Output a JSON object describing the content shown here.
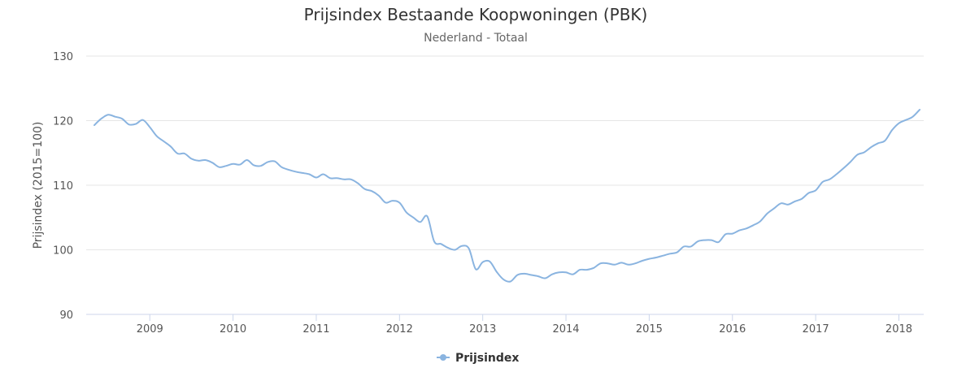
{
  "chart_data": {
    "type": "line",
    "title": "Prijsindex Bestaande Koopwoningen (PBK)",
    "subtitle": "Nederland - Totaal",
    "ylabel": "Prijsindex (2015=100)",
    "xlabel": "",
    "ylim": [
      90,
      130
    ],
    "yticks": [
      "90",
      "100",
      "110",
      "120",
      "130"
    ],
    "xticks": [
      "2009",
      "2010",
      "2011",
      "2012",
      "2013",
      "2014",
      "2015",
      "2016",
      "2017",
      "2018"
    ],
    "xlim": [
      "2008-05",
      "2018-05"
    ],
    "grid": true,
    "legend_position": "bottom-center",
    "series": [
      {
        "name": "Prijsindex",
        "color": "#8ab4e0",
        "points": [
          [
            "2008-05",
            119.3
          ],
          [
            "2008-06",
            120.3
          ],
          [
            "2008-07",
            120.9
          ],
          [
            "2008-08",
            120.6
          ],
          [
            "2008-09",
            120.3
          ],
          [
            "2008-10",
            119.4
          ],
          [
            "2008-11",
            119.5
          ],
          [
            "2008-12",
            120.1
          ],
          [
            "2009-01",
            119.0
          ],
          [
            "2009-02",
            117.6
          ],
          [
            "2009-03",
            116.8
          ],
          [
            "2009-04",
            116.0
          ],
          [
            "2009-05",
            114.9
          ],
          [
            "2009-06",
            114.9
          ],
          [
            "2009-07",
            114.1
          ],
          [
            "2009-08",
            113.8
          ],
          [
            "2009-09",
            113.9
          ],
          [
            "2009-10",
            113.5
          ],
          [
            "2009-11",
            112.8
          ],
          [
            "2009-12",
            113.0
          ],
          [
            "2010-01",
            113.3
          ],
          [
            "2010-02",
            113.2
          ],
          [
            "2010-03",
            113.9
          ],
          [
            "2010-04",
            113.1
          ],
          [
            "2010-05",
            113.0
          ],
          [
            "2010-06",
            113.6
          ],
          [
            "2010-07",
            113.7
          ],
          [
            "2010-08",
            112.8
          ],
          [
            "2010-09",
            112.4
          ],
          [
            "2010-10",
            112.1
          ],
          [
            "2010-11",
            111.9
          ],
          [
            "2010-12",
            111.7
          ],
          [
            "2011-01",
            111.2
          ],
          [
            "2011-02",
            111.7
          ],
          [
            "2011-03",
            111.1
          ],
          [
            "2011-04",
            111.1
          ],
          [
            "2011-05",
            110.9
          ],
          [
            "2011-06",
            110.9
          ],
          [
            "2011-07",
            110.3
          ],
          [
            "2011-08",
            109.4
          ],
          [
            "2011-09",
            109.1
          ],
          [
            "2011-10",
            108.4
          ],
          [
            "2011-11",
            107.3
          ],
          [
            "2011-12",
            107.6
          ],
          [
            "2012-01",
            107.3
          ],
          [
            "2012-02",
            105.8
          ],
          [
            "2012-03",
            105.0
          ],
          [
            "2012-04",
            104.3
          ],
          [
            "2012-05",
            105.2
          ],
          [
            "2012-06",
            101.3
          ],
          [
            "2012-07",
            100.9
          ],
          [
            "2012-08",
            100.3
          ],
          [
            "2012-09",
            100.0
          ],
          [
            "2012-10",
            100.6
          ],
          [
            "2012-11",
            100.2
          ],
          [
            "2012-12",
            97.0
          ],
          [
            "2013-01",
            98.1
          ],
          [
            "2013-02",
            98.2
          ],
          [
            "2013-03",
            96.6
          ],
          [
            "2013-04",
            95.4
          ],
          [
            "2013-05",
            95.1
          ],
          [
            "2013-06",
            96.1
          ],
          [
            "2013-07",
            96.3
          ],
          [
            "2013-08",
            96.1
          ],
          [
            "2013-09",
            95.9
          ],
          [
            "2013-10",
            95.6
          ],
          [
            "2013-11",
            96.2
          ],
          [
            "2013-12",
            96.5
          ],
          [
            "2014-01",
            96.5
          ],
          [
            "2014-02",
            96.2
          ],
          [
            "2014-03",
            96.9
          ],
          [
            "2014-04",
            96.9
          ],
          [
            "2014-05",
            97.2
          ],
          [
            "2014-06",
            97.9
          ],
          [
            "2014-07",
            97.9
          ],
          [
            "2014-08",
            97.7
          ],
          [
            "2014-09",
            98.0
          ],
          [
            "2014-10",
            97.7
          ],
          [
            "2014-11",
            97.9
          ],
          [
            "2014-12",
            98.3
          ],
          [
            "2015-01",
            98.6
          ],
          [
            "2015-02",
            98.8
          ],
          [
            "2015-03",
            99.1
          ],
          [
            "2015-04",
            99.4
          ],
          [
            "2015-05",
            99.6
          ],
          [
            "2015-06",
            100.5
          ],
          [
            "2015-07",
            100.5
          ],
          [
            "2015-08",
            101.3
          ],
          [
            "2015-09",
            101.5
          ],
          [
            "2015-10",
            101.5
          ],
          [
            "2015-11",
            101.2
          ],
          [
            "2015-12",
            102.4
          ],
          [
            "2016-01",
            102.5
          ],
          [
            "2016-02",
            103.0
          ],
          [
            "2016-03",
            103.3
          ],
          [
            "2016-04",
            103.8
          ],
          [
            "2016-05",
            104.4
          ],
          [
            "2016-06",
            105.6
          ],
          [
            "2016-07",
            106.4
          ],
          [
            "2016-08",
            107.2
          ],
          [
            "2016-09",
            107.0
          ],
          [
            "2016-10",
            107.5
          ],
          [
            "2016-11",
            107.9
          ],
          [
            "2016-12",
            108.8
          ],
          [
            "2017-01",
            109.2
          ],
          [
            "2017-02",
            110.5
          ],
          [
            "2017-03",
            110.9
          ],
          [
            "2017-04",
            111.7
          ],
          [
            "2017-05",
            112.6
          ],
          [
            "2017-06",
            113.6
          ],
          [
            "2017-07",
            114.7
          ],
          [
            "2017-08",
            115.1
          ],
          [
            "2017-09",
            115.9
          ],
          [
            "2017-10",
            116.5
          ],
          [
            "2017-11",
            116.9
          ],
          [
            "2017-12",
            118.5
          ],
          [
            "2018-01",
            119.6
          ],
          [
            "2018-02",
            120.1
          ],
          [
            "2018-03",
            120.6
          ],
          [
            "2018-04",
            121.7
          ]
        ]
      }
    ]
  }
}
